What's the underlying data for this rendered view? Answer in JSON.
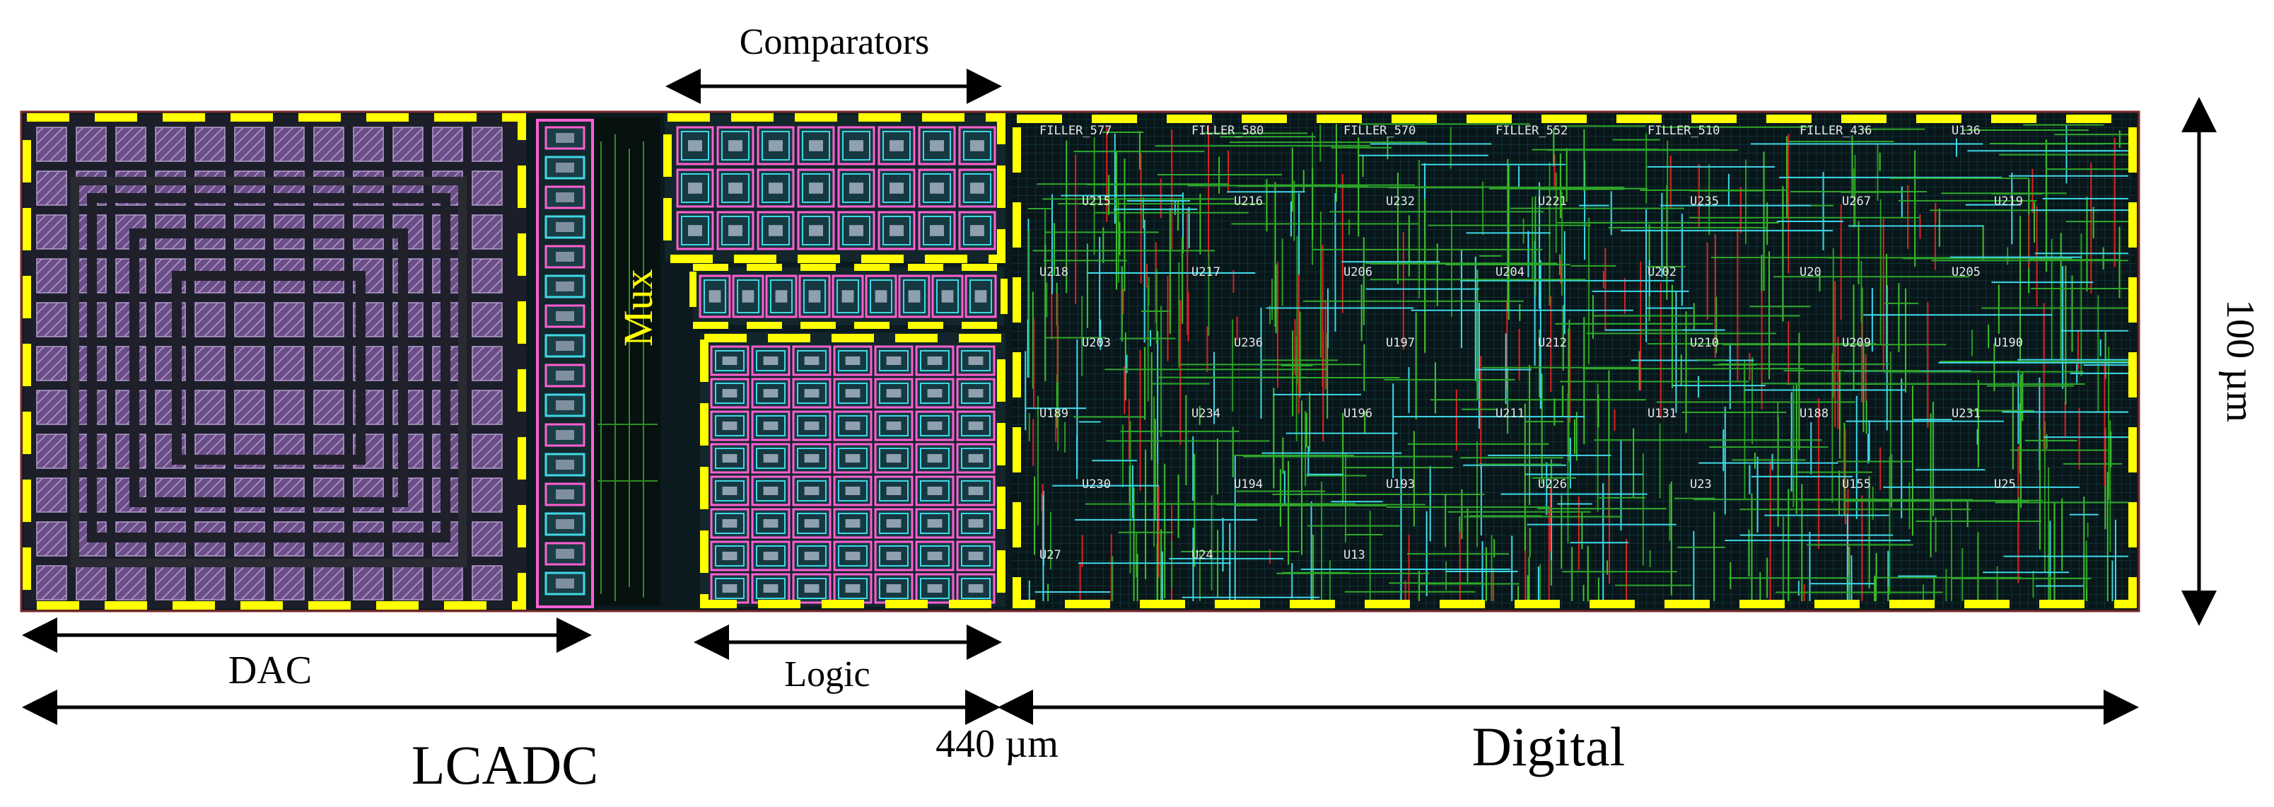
{
  "labels": {
    "comparators": "Comparators",
    "mux": "Mux",
    "dac": "DAC",
    "logic": "Logic",
    "lcadc": "LCADC",
    "width": "440 µm",
    "digital": "Digital",
    "height": "100 µm"
  },
  "cell_names": [
    "FILLER_577",
    "FILLER_580",
    "FILLER_570",
    "FILLER_552",
    "FILLER_510",
    "FILLER_436",
    "U136",
    "U215",
    "U216",
    "U232",
    "U221",
    "U235",
    "U267",
    "U219",
    "U218",
    "U217",
    "U206",
    "U204",
    "U202",
    "U20",
    "U205",
    "U203",
    "U236",
    "U197",
    "U212",
    "U210",
    "U209",
    "U190",
    "U189",
    "U234",
    "U196",
    "U211",
    "U131",
    "U188",
    "U231",
    "U230",
    "U194",
    "U193",
    "U226",
    "U23",
    "U155",
    "U25",
    "U27",
    "U24",
    "U13"
  ],
  "colors": {
    "boundary": "#ffff00",
    "chip_bg": "#0b1a1e",
    "dac_cell": "#7a5f95",
    "metal_pink": "#ff5fd2",
    "metal_cyan": "#3fd8e6",
    "wire_green": "#3fc02a",
    "wire_red": "#e02020",
    "arrow": "#000000"
  }
}
